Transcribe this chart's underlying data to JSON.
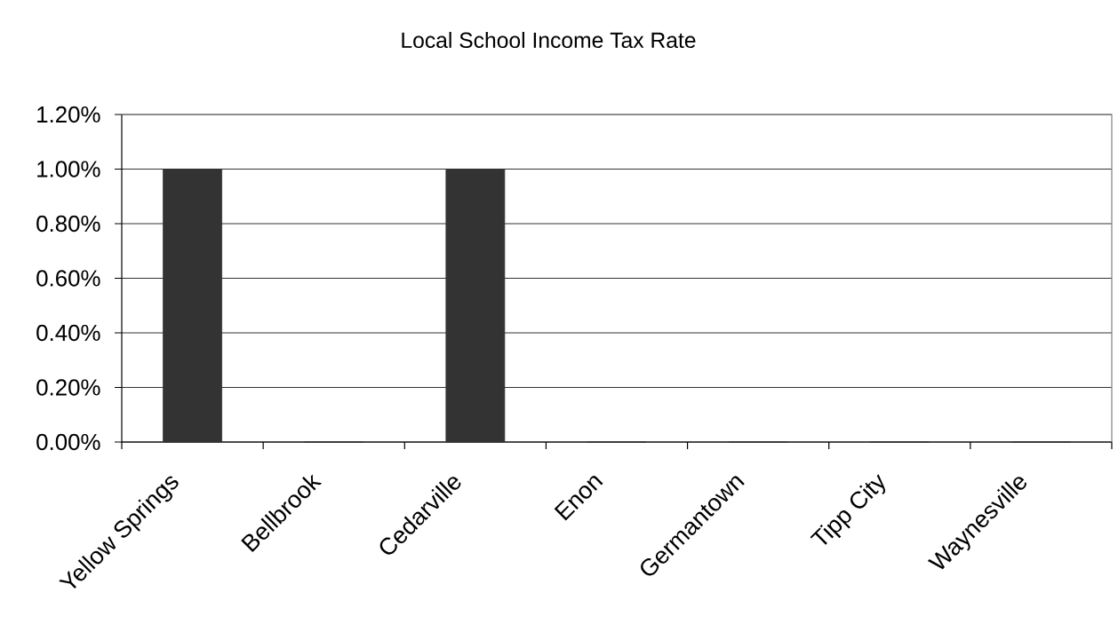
{
  "chart_data": {
    "type": "bar",
    "title": "Local School Income Tax Rate",
    "categories": [
      "Yellow Springs",
      "Bellbrook",
      "Cedarville",
      "Enon",
      "Germantown",
      "Tipp City",
      "Waynesville"
    ],
    "values": [
      1.0,
      0,
      1.0,
      0,
      0,
      0,
      0
    ],
    "color": "#333333",
    "ylim": [
      0,
      1.2
    ],
    "yticks": [
      {
        "value": 0,
        "label": "0.00%"
      },
      {
        "value": 0.2,
        "label": "0.20%"
      },
      {
        "value": 0.4,
        "label": "0.40%"
      },
      {
        "value": 0.6,
        "label": "0.60%"
      },
      {
        "value": 0.8,
        "label": "0.80%"
      },
      {
        "value": 1.0,
        "label": "1.00%"
      },
      {
        "value": 1.2,
        "label": "1.20%"
      }
    ],
    "grid": "y"
  }
}
